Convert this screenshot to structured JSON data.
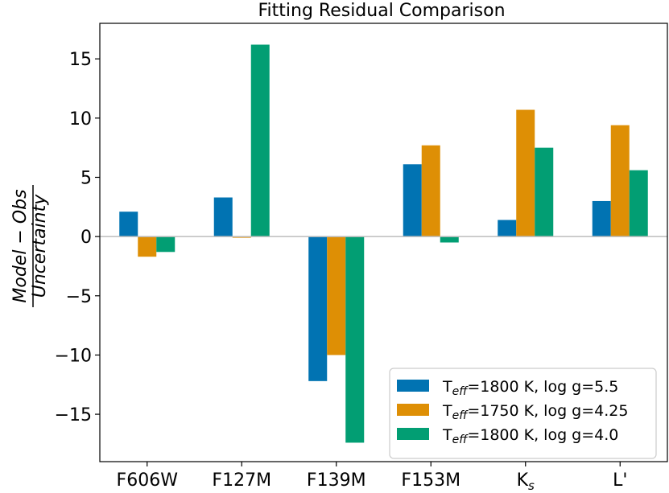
{
  "chart_data": {
    "type": "bar",
    "title": "Fitting Residual Comparison",
    "ylabel": {
      "numerator": "Model − Obs",
      "denominator": "Uncertainty"
    },
    "xlabel": "",
    "categories": [
      {
        "text": "F606W",
        "sub": ""
      },
      {
        "text": "F127M",
        "sub": ""
      },
      {
        "text": "F139M",
        "sub": ""
      },
      {
        "text": "F153M",
        "sub": ""
      },
      {
        "text": "K",
        "sub": "s"
      },
      {
        "text": "L'",
        "sub": ""
      }
    ],
    "ylim": [
      -19,
      18
    ],
    "yticks": [
      -15,
      -10,
      -5,
      0,
      5,
      10,
      15
    ],
    "ytick_labels": [
      "−15",
      "−10",
      "−5",
      "0",
      "5",
      "10",
      "15"
    ],
    "zero_line": true,
    "legend_position": "lower-right",
    "series": [
      {
        "name": "T_eff=1800 K, log g=5.5",
        "legend": {
          "pre": "T",
          "sub": "eff",
          "post": "=1800 K, log g=5.5"
        },
        "color": "#0173b2",
        "values": [
          2.1,
          3.3,
          -12.2,
          6.1,
          1.4,
          3.0
        ]
      },
      {
        "name": "T_eff=1750 K, log g=4.25",
        "legend": {
          "pre": "T",
          "sub": "eff",
          "post": "=1750 K, log g=4.25"
        },
        "color": "#de8f05",
        "values": [
          -1.7,
          -0.1,
          -10.0,
          7.7,
          10.7,
          9.4
        ]
      },
      {
        "name": "T_eff=1800 K, log g=4.0",
        "legend": {
          "pre": "T",
          "sub": "eff",
          "post": "=1800 K, log g=4.0"
        },
        "color": "#029e73",
        "values": [
          -1.3,
          16.2,
          -17.4,
          -0.5,
          7.5,
          5.6
        ]
      }
    ]
  }
}
